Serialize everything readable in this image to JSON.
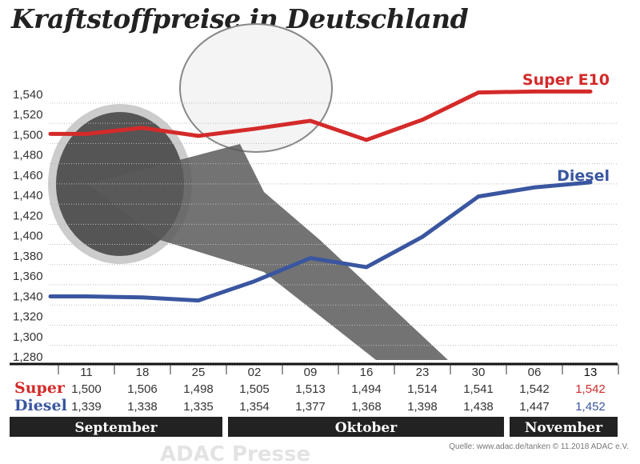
{
  "title": "Kraftstoffpreise in Deutschland",
  "source": "Quelle: www.adac.de/tanken   © 11.2018  ADAC e.V.",
  "watermark": "ADAC Presse",
  "colors": {
    "super": "#d42a2a",
    "diesel": "#3a56a0",
    "month_bar": "#222222"
  },
  "chart_data": {
    "type": "line",
    "title": "Kraftstoffpreise in Deutschland",
    "categories": [
      "11",
      "18",
      "25",
      "02",
      "09",
      "16",
      "23",
      "30",
      "06",
      "13"
    ],
    "highlight_category": "13",
    "months": [
      {
        "label": "September",
        "span": 3
      },
      {
        "label": "Oktober",
        "span": 5
      },
      {
        "label": "November",
        "span": 2
      }
    ],
    "yticks": [
      "1,280",
      "1,300",
      "1,320",
      "1,340",
      "1,360",
      "1,380",
      "1,400",
      "1,420",
      "1,440",
      "1,460",
      "1,480",
      "1,500",
      "1,520",
      "1,540"
    ],
    "ylim": [
      1.28,
      1.56
    ],
    "grid": true,
    "series": [
      {
        "name": "Super E10",
        "row_label": "Super",
        "color": "#d42a2a",
        "values": [
          1.5,
          1.506,
          1.498,
          1.505,
          1.513,
          1.494,
          1.514,
          1.541,
          1.542,
          1.542
        ],
        "labels": [
          "1,500",
          "1,506",
          "1,498",
          "1,505",
          "1,513",
          "1,494",
          "1,514",
          "1,541",
          "1,542",
          "1,542"
        ]
      },
      {
        "name": "Diesel",
        "row_label": "Diesel",
        "color": "#3a56a0",
        "values": [
          1.339,
          1.338,
          1.335,
          1.354,
          1.377,
          1.368,
          1.398,
          1.438,
          1.447,
          1.452
        ],
        "labels": [
          "1,339",
          "1,338",
          "1,335",
          "1,354",
          "1,377",
          "1,368",
          "1,398",
          "1,438",
          "1,447",
          "1,452"
        ]
      }
    ]
  }
}
